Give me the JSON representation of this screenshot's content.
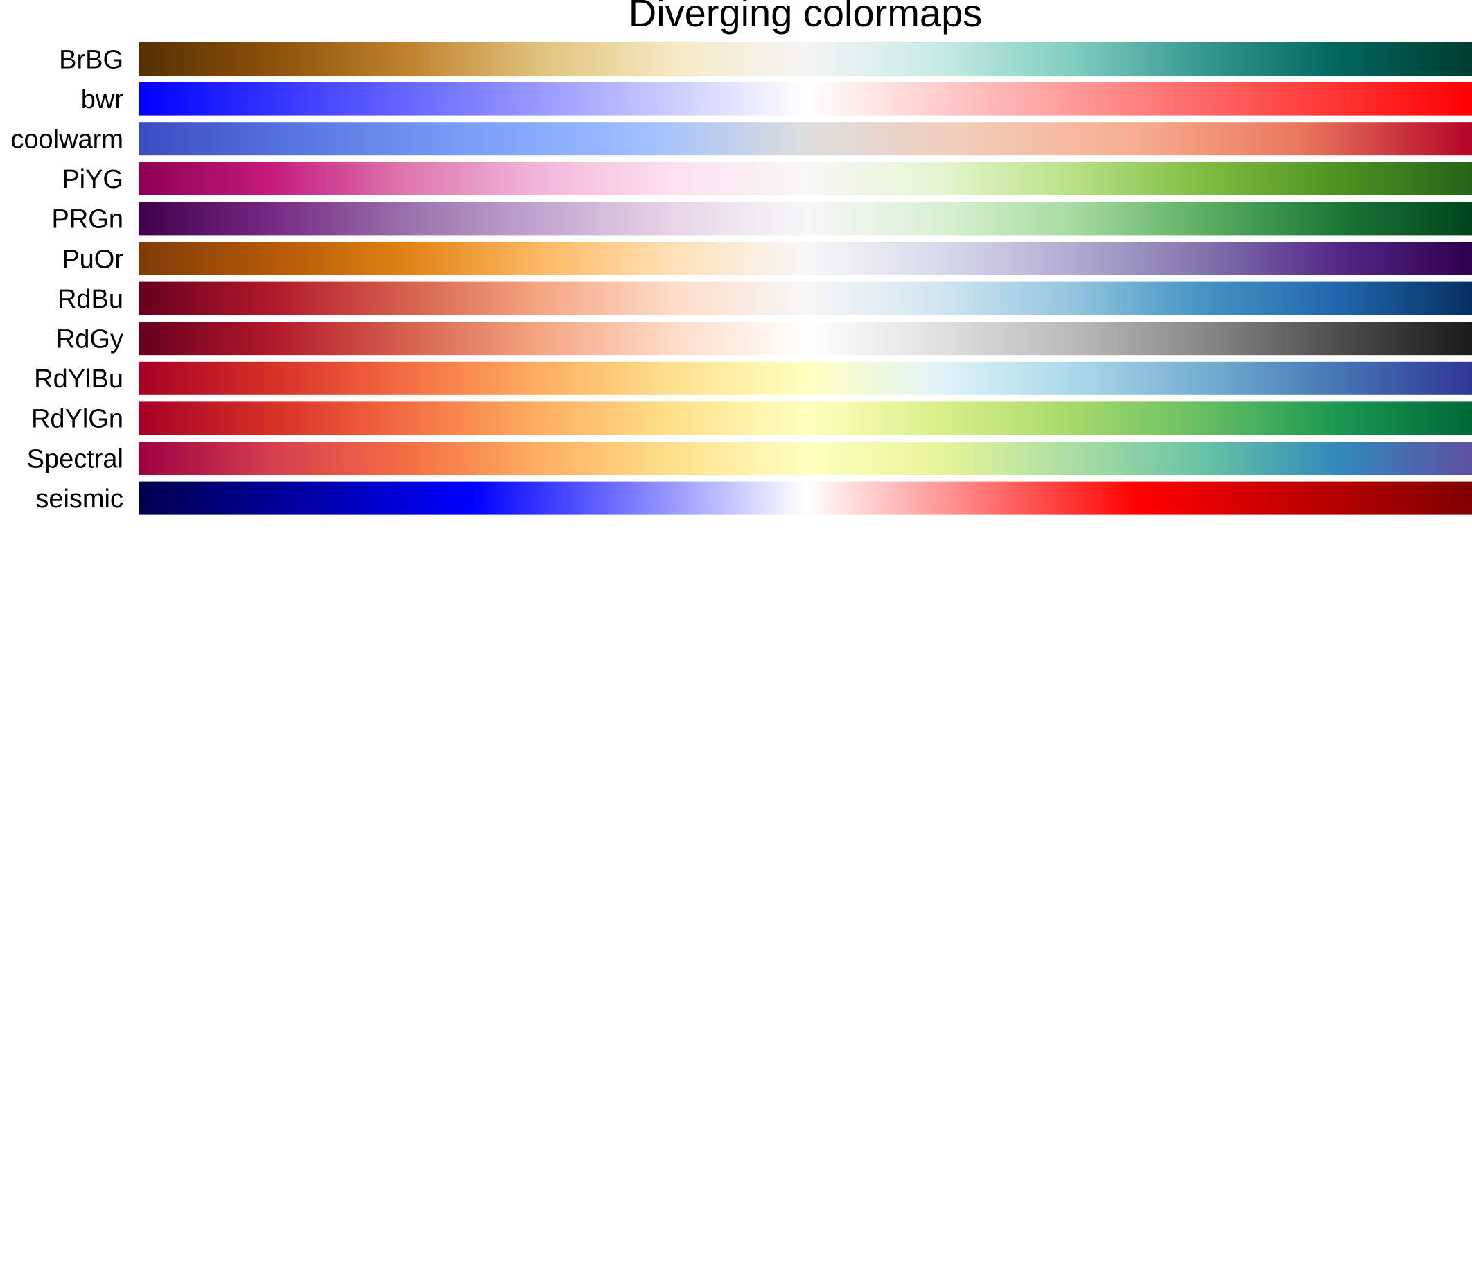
{
  "chart_data": {
    "type": "heatmap",
    "title": "Diverging colormaps",
    "xlabel": "",
    "ylabel": "",
    "grid": false,
    "legend": "none",
    "axes_visible": false,
    "value_range": [
      0,
      1
    ],
    "colormaps": [
      {
        "name": "BrBG",
        "stops": [
          {
            "at": 0.0,
            "color": "#543005"
          },
          {
            "at": 0.1,
            "color": "#8c510a"
          },
          {
            "at": 0.2,
            "color": "#bf812d"
          },
          {
            "at": 0.3,
            "color": "#dfc27d"
          },
          {
            "at": 0.4,
            "color": "#f6e8c3"
          },
          {
            "at": 0.5,
            "color": "#f5f5f5"
          },
          {
            "at": 0.6,
            "color": "#c7eae5"
          },
          {
            "at": 0.7,
            "color": "#80cdc1"
          },
          {
            "at": 0.8,
            "color": "#35978f"
          },
          {
            "at": 0.9,
            "color": "#01665e"
          },
          {
            "at": 1.0,
            "color": "#003c30"
          }
        ]
      },
      {
        "name": "bwr",
        "stops": [
          {
            "at": 0.0,
            "color": "#0000ff"
          },
          {
            "at": 0.5,
            "color": "#ffffff"
          },
          {
            "at": 1.0,
            "color": "#ff0000"
          }
        ]
      },
      {
        "name": "coolwarm",
        "stops": [
          {
            "at": 0.0,
            "color": "#3b4cc0"
          },
          {
            "at": 0.125,
            "color": "#5977e3"
          },
          {
            "at": 0.25,
            "color": "#7b9ff9"
          },
          {
            "at": 0.375,
            "color": "#9ebeff"
          },
          {
            "at": 0.5,
            "color": "#dddddd"
          },
          {
            "at": 0.625,
            "color": "#f2cbb7"
          },
          {
            "at": 0.75,
            "color": "#f7ac8e"
          },
          {
            "at": 0.875,
            "color": "#e7745b"
          },
          {
            "at": 1.0,
            "color": "#b40426"
          }
        ]
      },
      {
        "name": "PiYG",
        "stops": [
          {
            "at": 0.0,
            "color": "#8e0152"
          },
          {
            "at": 0.1,
            "color": "#c51b7d"
          },
          {
            "at": 0.2,
            "color": "#de77ae"
          },
          {
            "at": 0.3,
            "color": "#f1b6da"
          },
          {
            "at": 0.4,
            "color": "#fde0ef"
          },
          {
            "at": 0.5,
            "color": "#f7f7f7"
          },
          {
            "at": 0.6,
            "color": "#e6f5d0"
          },
          {
            "at": 0.7,
            "color": "#b8e186"
          },
          {
            "at": 0.8,
            "color": "#7fbc41"
          },
          {
            "at": 0.9,
            "color": "#4d9221"
          },
          {
            "at": 1.0,
            "color": "#276419"
          }
        ]
      },
      {
        "name": "PRGn",
        "stops": [
          {
            "at": 0.0,
            "color": "#40004b"
          },
          {
            "at": 0.1,
            "color": "#762a83"
          },
          {
            "at": 0.2,
            "color": "#9970ab"
          },
          {
            "at": 0.3,
            "color": "#c2a5cf"
          },
          {
            "at": 0.4,
            "color": "#e7d4e8"
          },
          {
            "at": 0.5,
            "color": "#f7f7f7"
          },
          {
            "at": 0.6,
            "color": "#d9f0d3"
          },
          {
            "at": 0.7,
            "color": "#a6dba0"
          },
          {
            "at": 0.8,
            "color": "#5aae61"
          },
          {
            "at": 0.9,
            "color": "#1b7837"
          },
          {
            "at": 1.0,
            "color": "#00441b"
          }
        ]
      },
      {
        "name": "PuOr",
        "stops": [
          {
            "at": 0.0,
            "color": "#7f3b08"
          },
          {
            "at": 0.1,
            "color": "#b35806"
          },
          {
            "at": 0.2,
            "color": "#e08214"
          },
          {
            "at": 0.3,
            "color": "#fdb863"
          },
          {
            "at": 0.4,
            "color": "#fee0b6"
          },
          {
            "at": 0.5,
            "color": "#f7f7f7"
          },
          {
            "at": 0.6,
            "color": "#d8daeb"
          },
          {
            "at": 0.7,
            "color": "#b2abd2"
          },
          {
            "at": 0.8,
            "color": "#8073ac"
          },
          {
            "at": 0.9,
            "color": "#542788"
          },
          {
            "at": 1.0,
            "color": "#2d004b"
          }
        ]
      },
      {
        "name": "RdBu",
        "stops": [
          {
            "at": 0.0,
            "color": "#67001f"
          },
          {
            "at": 0.1,
            "color": "#b2182b"
          },
          {
            "at": 0.2,
            "color": "#d6604d"
          },
          {
            "at": 0.3,
            "color": "#f4a582"
          },
          {
            "at": 0.4,
            "color": "#fddbc7"
          },
          {
            "at": 0.5,
            "color": "#f7f7f7"
          },
          {
            "at": 0.6,
            "color": "#d1e5f0"
          },
          {
            "at": 0.7,
            "color": "#92c5de"
          },
          {
            "at": 0.8,
            "color": "#4393c3"
          },
          {
            "at": 0.9,
            "color": "#2166ac"
          },
          {
            "at": 1.0,
            "color": "#053061"
          }
        ]
      },
      {
        "name": "RdGy",
        "stops": [
          {
            "at": 0.0,
            "color": "#67001f"
          },
          {
            "at": 0.1,
            "color": "#b2182b"
          },
          {
            "at": 0.2,
            "color": "#d6604d"
          },
          {
            "at": 0.3,
            "color": "#f4a582"
          },
          {
            "at": 0.4,
            "color": "#fddbc7"
          },
          {
            "at": 0.5,
            "color": "#ffffff"
          },
          {
            "at": 0.6,
            "color": "#e0e0e0"
          },
          {
            "at": 0.7,
            "color": "#bababa"
          },
          {
            "at": 0.8,
            "color": "#878787"
          },
          {
            "at": 0.9,
            "color": "#4d4d4d"
          },
          {
            "at": 1.0,
            "color": "#1a1a1a"
          }
        ]
      },
      {
        "name": "RdYlBu",
        "stops": [
          {
            "at": 0.0,
            "color": "#a50026"
          },
          {
            "at": 0.1,
            "color": "#d73027"
          },
          {
            "at": 0.2,
            "color": "#f46d43"
          },
          {
            "at": 0.3,
            "color": "#fdae61"
          },
          {
            "at": 0.4,
            "color": "#fee090"
          },
          {
            "at": 0.5,
            "color": "#ffffbf"
          },
          {
            "at": 0.6,
            "color": "#e0f3f8"
          },
          {
            "at": 0.7,
            "color": "#abd9e9"
          },
          {
            "at": 0.8,
            "color": "#74add1"
          },
          {
            "at": 0.9,
            "color": "#4575b4"
          },
          {
            "at": 1.0,
            "color": "#313695"
          }
        ]
      },
      {
        "name": "RdYlGn",
        "stops": [
          {
            "at": 0.0,
            "color": "#a50026"
          },
          {
            "at": 0.1,
            "color": "#d73027"
          },
          {
            "at": 0.2,
            "color": "#f46d43"
          },
          {
            "at": 0.3,
            "color": "#fdae61"
          },
          {
            "at": 0.4,
            "color": "#fee08b"
          },
          {
            "at": 0.5,
            "color": "#ffffbf"
          },
          {
            "at": 0.6,
            "color": "#d9ef8b"
          },
          {
            "at": 0.7,
            "color": "#a6d96a"
          },
          {
            "at": 0.8,
            "color": "#66bd63"
          },
          {
            "at": 0.9,
            "color": "#1a9850"
          },
          {
            "at": 1.0,
            "color": "#006837"
          }
        ]
      },
      {
        "name": "Spectral",
        "stops": [
          {
            "at": 0.0,
            "color": "#9e0142"
          },
          {
            "at": 0.1,
            "color": "#d53e4f"
          },
          {
            "at": 0.2,
            "color": "#f46d43"
          },
          {
            "at": 0.3,
            "color": "#fdae61"
          },
          {
            "at": 0.4,
            "color": "#fee08b"
          },
          {
            "at": 0.5,
            "color": "#ffffbf"
          },
          {
            "at": 0.6,
            "color": "#e6f598"
          },
          {
            "at": 0.7,
            "color": "#abdda4"
          },
          {
            "at": 0.8,
            "color": "#66c2a5"
          },
          {
            "at": 0.9,
            "color": "#3288bd"
          },
          {
            "at": 1.0,
            "color": "#5e4fa2"
          }
        ]
      },
      {
        "name": "seismic",
        "stops": [
          {
            "at": 0.0,
            "color": "#00004c"
          },
          {
            "at": 0.25,
            "color": "#0000ff"
          },
          {
            "at": 0.5,
            "color": "#ffffff"
          },
          {
            "at": 0.75,
            "color": "#ff0000"
          },
          {
            "at": 1.0,
            "color": "#7f0000"
          }
        ]
      }
    ]
  }
}
